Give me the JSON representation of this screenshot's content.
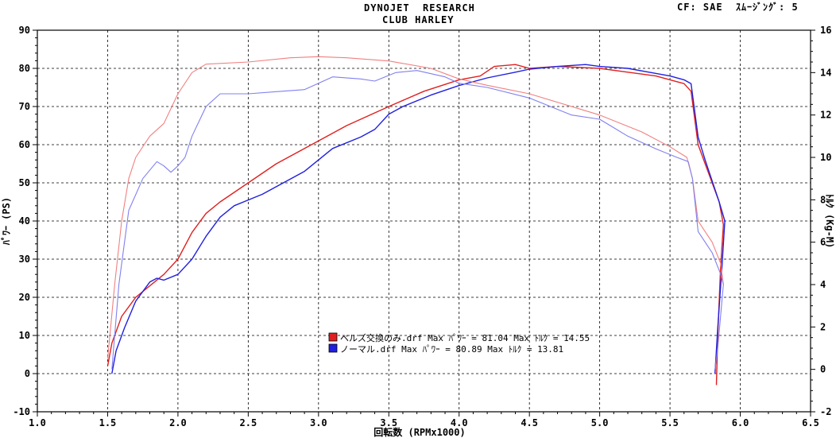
{
  "header": {
    "title_line1": "DYNOJET  RESEARCH",
    "title_line2": "CLUB HARLEY",
    "top_right": "CF: SAE  ｽﾑｰｼﾞﾝｸﾞ: 5"
  },
  "chart_data": {
    "type": "line",
    "title": "DYNOJET  RESEARCH",
    "subtitle": "CLUB HARLEY",
    "xlabel": "回転数 (RPMx1000)",
    "ylabel_left": "ﾊﾟﾜｰ (PS)",
    "ylabel_right": "ﾄﾙｸ (Kg-M)",
    "xlim": [
      1.0,
      6.5
    ],
    "ylim_left": [
      -10,
      90
    ],
    "ylim_right": [
      -2,
      16
    ],
    "x_ticks": [
      "1.0",
      "1.5",
      "2.0",
      "2.5",
      "3.0",
      "3.5",
      "4.0",
      "4.5",
      "5.0",
      "5.5",
      "6.0",
      "6.5"
    ],
    "y_ticks_left": [
      "-10",
      "0",
      "10",
      "20",
      "30",
      "40",
      "50",
      "60",
      "70",
      "80",
      "90"
    ],
    "y_ticks_right": [
      "-2",
      "0",
      "2",
      "4",
      "6",
      "8",
      "10",
      "12",
      "14",
      "16"
    ],
    "grid": true,
    "legend_position": "bottom-center",
    "legend": [
      {
        "label": "ベルズ交換のみ.drf Max ﾊﾟﾜｰ = 81.04     Max ﾄﾙｸ = 14.55",
        "color": "#e02020"
      },
      {
        "label": "ノーマル.drf Max ﾊﾟﾜｰ = 80.89     Max ﾄﾙｸ = 13.81",
        "color": "#2020e0"
      }
    ],
    "series": [
      {
        "name": "ベルズ交換のみ.drf",
        "kind": "power",
        "axis": "left",
        "color": "#e02020",
        "points": [
          [
            1.5,
            2
          ],
          [
            1.53,
            8
          ],
          [
            1.6,
            15
          ],
          [
            1.7,
            20
          ],
          [
            1.8,
            23
          ],
          [
            1.9,
            26
          ],
          [
            2.0,
            30
          ],
          [
            2.1,
            37
          ],
          [
            2.2,
            42
          ],
          [
            2.3,
            45
          ],
          [
            2.5,
            50
          ],
          [
            2.7,
            55
          ],
          [
            3.0,
            61
          ],
          [
            3.2,
            65
          ],
          [
            3.5,
            70
          ],
          [
            3.75,
            74
          ],
          [
            4.0,
            77
          ],
          [
            4.15,
            78
          ],
          [
            4.25,
            80.5
          ],
          [
            4.4,
            81
          ],
          [
            4.5,
            80
          ],
          [
            4.7,
            80.5
          ],
          [
            5.0,
            80
          ],
          [
            5.2,
            79
          ],
          [
            5.4,
            78
          ],
          [
            5.5,
            77
          ],
          [
            5.6,
            76
          ],
          [
            5.65,
            74
          ],
          [
            5.7,
            60
          ],
          [
            5.75,
            55
          ],
          [
            5.85,
            45
          ],
          [
            5.88,
            39
          ],
          [
            5.86,
            28
          ],
          [
            5.84,
            10
          ],
          [
            5.83,
            -3
          ]
        ]
      },
      {
        "name": "ノーマル.drf",
        "kind": "power",
        "axis": "left",
        "color": "#2020e0",
        "points": [
          [
            1.53,
            0
          ],
          [
            1.56,
            6
          ],
          [
            1.62,
            12
          ],
          [
            1.7,
            19
          ],
          [
            1.8,
            24
          ],
          [
            1.85,
            25
          ],
          [
            1.9,
            24.5
          ],
          [
            2.0,
            26
          ],
          [
            2.1,
            30
          ],
          [
            2.2,
            36
          ],
          [
            2.3,
            41
          ],
          [
            2.4,
            44
          ],
          [
            2.6,
            47
          ],
          [
            2.9,
            53
          ],
          [
            3.1,
            59
          ],
          [
            3.3,
            62
          ],
          [
            3.4,
            64
          ],
          [
            3.5,
            68
          ],
          [
            3.6,
            70
          ],
          [
            3.8,
            73
          ],
          [
            4.0,
            75.5
          ],
          [
            4.2,
            77.5
          ],
          [
            4.4,
            79
          ],
          [
            4.5,
            79.8
          ],
          [
            4.7,
            80.5
          ],
          [
            4.9,
            81
          ],
          [
            5.0,
            80.5
          ],
          [
            5.2,
            80
          ],
          [
            5.35,
            79
          ],
          [
            5.5,
            78
          ],
          [
            5.6,
            77
          ],
          [
            5.65,
            76
          ],
          [
            5.7,
            62
          ],
          [
            5.75,
            56
          ],
          [
            5.85,
            45
          ],
          [
            5.89,
            40
          ],
          [
            5.87,
            28
          ],
          [
            5.84,
            12
          ],
          [
            5.82,
            0
          ]
        ]
      },
      {
        "name": "ベルズ交換のみ.drf",
        "kind": "torque",
        "axis": "right",
        "color": "#f08080",
        "points": [
          [
            1.5,
            0.5
          ],
          [
            1.55,
            4
          ],
          [
            1.6,
            7
          ],
          [
            1.65,
            9
          ],
          [
            1.7,
            10
          ],
          [
            1.8,
            11
          ],
          [
            1.9,
            11.6
          ],
          [
            2.0,
            13
          ],
          [
            2.1,
            14
          ],
          [
            2.2,
            14.4
          ],
          [
            2.5,
            14.5
          ],
          [
            2.8,
            14.7
          ],
          [
            3.0,
            14.75
          ],
          [
            3.2,
            14.7
          ],
          [
            3.5,
            14.55
          ],
          [
            3.8,
            14.2
          ],
          [
            4.0,
            13.7
          ],
          [
            4.2,
            13.4
          ],
          [
            4.5,
            13
          ],
          [
            5.0,
            12
          ],
          [
            5.3,
            11.2
          ],
          [
            5.5,
            10.5
          ],
          [
            5.62,
            10
          ],
          [
            5.66,
            9
          ],
          [
            5.7,
            7
          ],
          [
            5.8,
            6
          ],
          [
            5.86,
            5
          ],
          [
            5.88,
            4
          ]
        ]
      },
      {
        "name": "ノーマル.drf",
        "kind": "torque",
        "axis": "right",
        "color": "#8080f0",
        "points": [
          [
            1.53,
            0
          ],
          [
            1.58,
            4
          ],
          [
            1.65,
            7.5
          ],
          [
            1.75,
            9
          ],
          [
            1.85,
            9.8
          ],
          [
            1.9,
            9.6
          ],
          [
            1.95,
            9.3
          ],
          [
            2.0,
            9.6
          ],
          [
            2.05,
            10
          ],
          [
            2.1,
            11
          ],
          [
            2.2,
            12.4
          ],
          [
            2.3,
            13
          ],
          [
            2.5,
            13
          ],
          [
            2.7,
            13.1
          ],
          [
            2.9,
            13.2
          ],
          [
            3.0,
            13.5
          ],
          [
            3.1,
            13.8
          ],
          [
            3.3,
            13.7
          ],
          [
            3.4,
            13.6
          ],
          [
            3.55,
            14
          ],
          [
            3.7,
            14.1
          ],
          [
            3.9,
            13.8
          ],
          [
            4.0,
            13.5
          ],
          [
            4.2,
            13.3
          ],
          [
            4.5,
            12.8
          ],
          [
            4.8,
            12
          ],
          [
            5.0,
            11.8
          ],
          [
            5.2,
            11
          ],
          [
            5.4,
            10.4
          ],
          [
            5.55,
            10
          ],
          [
            5.63,
            9.8
          ],
          [
            5.66,
            9
          ],
          [
            5.7,
            6.5
          ],
          [
            5.8,
            5.5
          ],
          [
            5.86,
            4.5
          ],
          [
            5.88,
            4
          ],
          [
            5.84,
            1
          ],
          [
            5.82,
            0
          ]
        ]
      }
    ]
  }
}
